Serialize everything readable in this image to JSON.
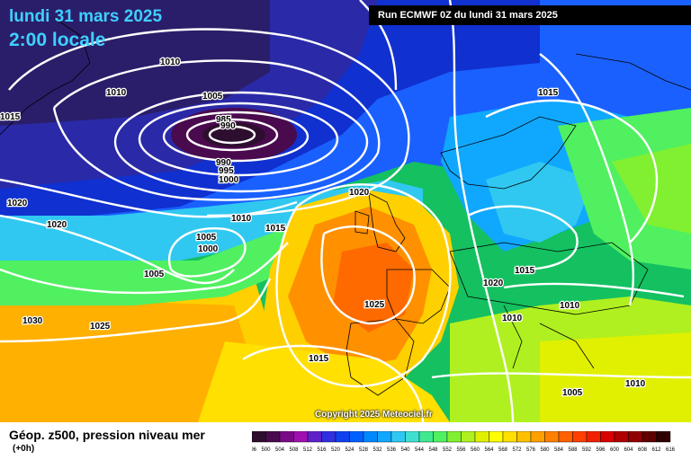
{
  "header": {
    "date": "lundi 31 mars 2025",
    "time": "2:00 locale",
    "run": "Run ECMWF 0Z du lundi 31 mars 2025"
  },
  "footer": {
    "title": "Géop. z500, pression niveau mer",
    "subtitle": "(+0h)",
    "copyright": "Copyright 2025 Meteociel.fr"
  },
  "isobars": [
    "1010",
    "1010",
    "1015",
    "1005",
    "985",
    "990",
    "995",
    "1000",
    "990",
    "1020",
    "1020",
    "1010",
    "1015",
    "1005",
    "1000",
    "1005",
    "1030",
    "1025",
    "1025",
    "1015",
    "1020",
    "1015",
    "1015",
    "1020",
    "1010",
    "1010",
    "1005",
    "1010"
  ],
  "scale": {
    "labels": [
      "496",
      "500",
      "504",
      "508",
      "512",
      "516",
      "520",
      "524",
      "528",
      "532",
      "536",
      "540",
      "544",
      "548",
      "552",
      "556",
      "560",
      "564",
      "568",
      "572",
      "576",
      "580",
      "584",
      "588",
      "592",
      "596",
      "600",
      "604",
      "608",
      "612",
      "616"
    ],
    "colors": [
      "#2e0e2e",
      "#4a0a4e",
      "#7a0a86",
      "#a010b0",
      "#6020c8",
      "#3030e0",
      "#1040f0",
      "#0060ff",
      "#0088ff",
      "#10a8ff",
      "#30c8f0",
      "#40e0d0",
      "#40e890",
      "#50f060",
      "#80f030",
      "#b0f020",
      "#e0f000",
      "#ffff00",
      "#ffe000",
      "#ffc000",
      "#ffa000",
      "#ff8000",
      "#ff6000",
      "#ff4000",
      "#f02000",
      "#d80000",
      "#b00000",
      "#900000",
      "#600000",
      "#300000"
    ]
  },
  "colors": {
    "title": "#3fd0ff"
  }
}
